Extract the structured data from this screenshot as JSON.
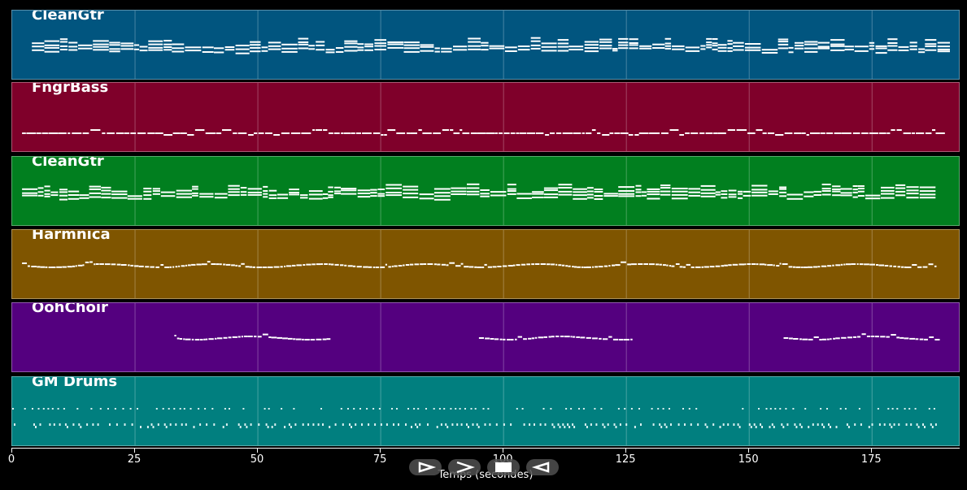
{
  "tracks": [
    {
      "name": "CleanGtr",
      "color": "#01557f",
      "density": "dense-chords",
      "active_ranges": [
        [
          4,
          190
        ]
      ]
    },
    {
      "name": "FngrBass",
      "color": "#7f002a",
      "density": "single-line",
      "active_ranges": [
        [
          2,
          188
        ]
      ]
    },
    {
      "name": "CleanGtr",
      "color": "#017f1f",
      "density": "dense-chords",
      "active_ranges": [
        [
          2,
          188
        ]
      ]
    },
    {
      "name": "Harmnica",
      "color": "#7f5500",
      "density": "melody",
      "active_ranges": [
        [
          2,
          188
        ]
      ]
    },
    {
      "name": "OohChoir",
      "color": "#54007f",
      "density": "melody",
      "active_ranges": [
        [
          33,
          64
        ],
        [
          95,
          126
        ],
        [
          157,
          188
        ]
      ]
    },
    {
      "name": "GM Drums",
      "color": "#017f7f",
      "density": "drums",
      "active_ranges": [
        [
          0,
          188
        ]
      ]
    }
  ],
  "axis": {
    "xmin": 0,
    "xmax": 193,
    "ticks": [
      0,
      25,
      50,
      75,
      100,
      125,
      150,
      175
    ],
    "tick_labels": [
      "0",
      "25",
      "50",
      "75",
      "100",
      "125",
      "150",
      "175"
    ],
    "label": "Temps (secondes)"
  },
  "controls": {
    "play_icon": "play-outline-icon",
    "fast_forward_icon": "chevron-right-icon",
    "stop_icon": "stop-icon",
    "rewind_icon": "play-back-icon"
  }
}
